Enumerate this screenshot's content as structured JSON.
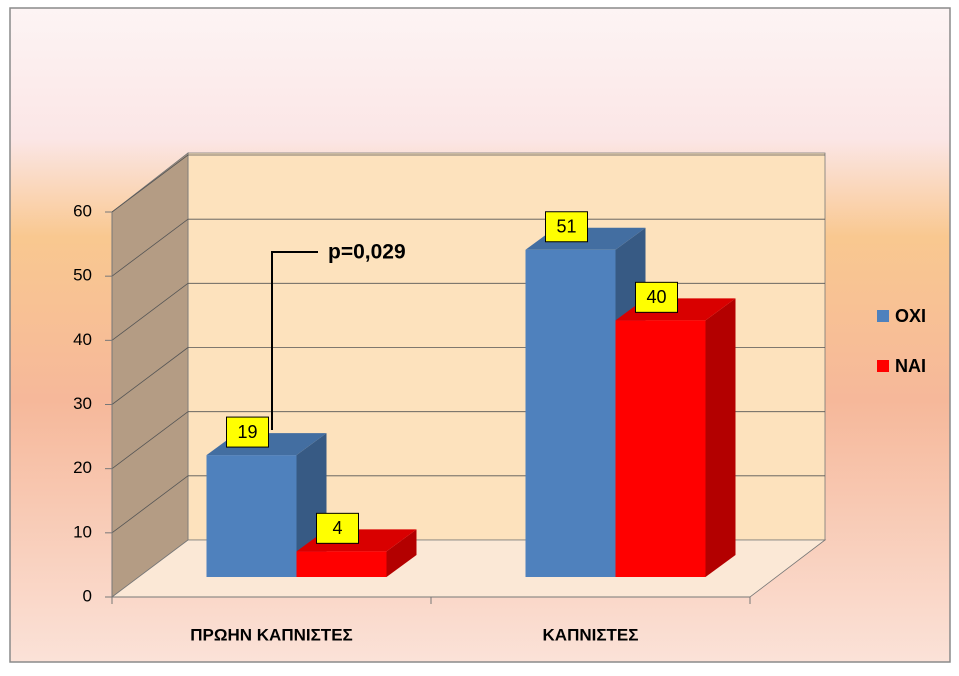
{
  "chart_data": {
    "type": "bar3d",
    "categories": [
      "ΠΡΩΗΝ ΚΑΠΝΙΣΤΕΣ",
      "ΚΑΠΝΙΣΤΕΣ"
    ],
    "series": [
      {
        "name": "ΟΧΙ",
        "color": "#4f81bd",
        "values": [
          19,
          51
        ]
      },
      {
        "name": "ΝΑΙ",
        "color": "#ff0000",
        "values": [
          4,
          40
        ]
      }
    ],
    "ylim": [
      0,
      60
    ],
    "yticks": [
      0,
      10,
      20,
      30,
      40,
      50,
      60
    ],
    "grid": true,
    "legend": "right",
    "annotation": "p=0,029"
  }
}
